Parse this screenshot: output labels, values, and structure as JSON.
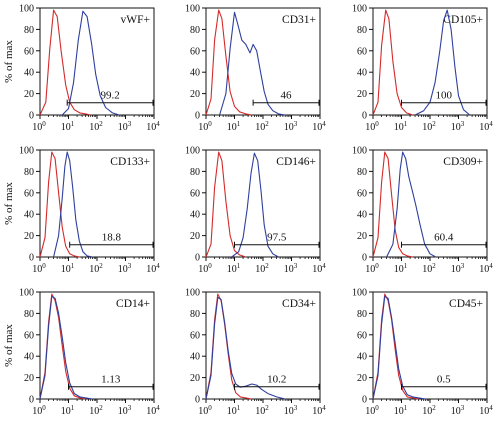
{
  "chart_data": [
    {
      "type": "area",
      "title": "vWF+",
      "ylabel": "% of max",
      "xscale": "log",
      "xlim": [
        1,
        10000
      ],
      "ylim": [
        0,
        100
      ],
      "yticks": [
        0,
        20,
        40,
        60,
        80,
        100
      ],
      "xtick_exponents": [
        0,
        1,
        2,
        3,
        4
      ],
      "series": [
        {
          "color": "#d42a2a",
          "x": [
            1,
            1.6,
            2.2,
            3,
            4,
            5.5,
            8,
            11,
            16,
            25,
            40,
            60
          ],
          "y": [
            0,
            12,
            62,
            98,
            92,
            60,
            28,
            12,
            5,
            2,
            1,
            0
          ]
        },
        {
          "color": "#2f3f9e",
          "x": [
            6,
            10,
            15,
            22,
            32,
            45,
            65,
            90,
            130,
            200,
            350,
            600
          ],
          "y": [
            0,
            6,
            30,
            70,
            97,
            92,
            66,
            38,
            18,
            7,
            2,
            0
          ]
        }
      ],
      "gate": {
        "from": 9,
        "to": 10000,
        "label": "99.2"
      }
    },
    {
      "type": "area",
      "title": "CD31+",
      "ylabel": "",
      "xscale": "log",
      "xlim": [
        1,
        10000
      ],
      "ylim": [
        0,
        100
      ],
      "yticks": [
        0,
        20,
        40,
        60,
        80,
        100
      ],
      "xtick_exponents": [
        0,
        1,
        2,
        3,
        4
      ],
      "series": [
        {
          "color": "#d42a2a",
          "x": [
            1,
            1.5,
            2,
            2.8,
            3.6,
            5,
            7,
            10,
            15,
            25,
            40
          ],
          "y": [
            0,
            15,
            70,
            98,
            90,
            55,
            22,
            8,
            3,
            1,
            0
          ]
        },
        {
          "color": "#2f3f9e",
          "x": [
            3,
            5,
            7,
            10,
            13,
            18,
            25,
            35,
            45,
            60,
            80,
            110,
            150,
            220,
            350,
            600
          ],
          "y": [
            0,
            20,
            62,
            96,
            85,
            70,
            66,
            58,
            66,
            60,
            42,
            22,
            10,
            4,
            1,
            0
          ]
        }
      ],
      "gate": {
        "from": 45,
        "to": 10000,
        "label": "46"
      }
    },
    {
      "type": "area",
      "title": "CD105+",
      "ylabel": "",
      "xscale": "log",
      "xlim": [
        1,
        10000
      ],
      "ylim": [
        0,
        100
      ],
      "yticks": [
        0,
        20,
        40,
        60,
        80,
        100
      ],
      "xtick_exponents": [
        0,
        1,
        2,
        3,
        4
      ],
      "series": [
        {
          "color": "#d42a2a",
          "x": [
            1,
            1.5,
            2,
            2.8,
            3.6,
            5,
            7,
            10,
            15,
            25
          ],
          "y": [
            0,
            12,
            65,
            98,
            90,
            50,
            20,
            7,
            2,
            0
          ]
        },
        {
          "color": "#2f3f9e",
          "x": [
            30,
            60,
            100,
            150,
            220,
            300,
            400,
            550,
            750,
            1000,
            1500,
            2500
          ],
          "y": [
            0,
            4,
            12,
            30,
            60,
            88,
            98,
            80,
            45,
            18,
            5,
            0
          ]
        }
      ],
      "gate": {
        "from": 10,
        "to": 10000,
        "label": "100"
      }
    },
    {
      "type": "area",
      "title": "CD133+",
      "ylabel": "% of max",
      "xscale": "log",
      "xlim": [
        1,
        10000
      ],
      "ylim": [
        0,
        100
      ],
      "yticks": [
        0,
        20,
        40,
        60,
        80,
        100
      ],
      "xtick_exponents": [
        0,
        1,
        2,
        3,
        4
      ],
      "series": [
        {
          "color": "#d42a2a",
          "x": [
            1,
            1.5,
            2,
            2.6,
            3.4,
            4.5,
            6,
            8,
            11,
            16,
            25
          ],
          "y": [
            0,
            18,
            70,
            98,
            92,
            60,
            28,
            10,
            3,
            1,
            0
          ]
        },
        {
          "color": "#2f3f9e",
          "x": [
            3,
            4.5,
            6,
            7.5,
            9,
            11,
            14,
            18,
            24,
            32,
            45,
            70
          ],
          "y": [
            0,
            20,
            55,
            85,
            98,
            90,
            65,
            35,
            15,
            5,
            1,
            0
          ]
        }
      ],
      "gate": {
        "from": 11,
        "to": 10000,
        "label": "18.8"
      }
    },
    {
      "type": "area",
      "title": "CD146+",
      "ylabel": "",
      "xscale": "log",
      "xlim": [
        1,
        10000
      ],
      "ylim": [
        0,
        100
      ],
      "yticks": [
        0,
        20,
        40,
        60,
        80,
        100
      ],
      "xtick_exponents": [
        0,
        1,
        2,
        3,
        4
      ],
      "series": [
        {
          "color": "#d42a2a",
          "x": [
            1,
            1.5,
            2,
            2.8,
            3.6,
            5,
            7,
            10,
            15,
            25
          ],
          "y": [
            0,
            12,
            65,
            98,
            90,
            52,
            20,
            6,
            2,
            0
          ]
        },
        {
          "color": "#2f3f9e",
          "x": [
            8,
            14,
            20,
            28,
            38,
            50,
            65,
            85,
            110,
            150,
            220,
            350
          ],
          "y": [
            0,
            5,
            18,
            45,
            78,
            97,
            90,
            62,
            30,
            10,
            3,
            0
          ]
        }
      ],
      "gate": {
        "from": 10,
        "to": 10000,
        "label": "97.5"
      }
    },
    {
      "type": "area",
      "title": "CD309+",
      "ylabel": "",
      "xscale": "log",
      "xlim": [
        1,
        10000
      ],
      "ylim": [
        0,
        100
      ],
      "yticks": [
        0,
        20,
        40,
        60,
        80,
        100
      ],
      "xtick_exponents": [
        0,
        1,
        2,
        3,
        4
      ],
      "series": [
        {
          "color": "#d42a2a",
          "x": [
            1,
            1.5,
            2,
            2.6,
            3.4,
            4.5,
            6,
            8,
            11,
            16,
            25
          ],
          "y": [
            0,
            18,
            70,
            98,
            92,
            58,
            25,
            9,
            3,
            1,
            0
          ]
        },
        {
          "color": "#2f3f9e",
          "x": [
            3,
            5,
            7,
            9,
            11,
            14,
            18,
            24,
            32,
            45,
            65,
            100,
            160
          ],
          "y": [
            0,
            12,
            45,
            82,
            98,
            92,
            75,
            62,
            48,
            30,
            12,
            3,
            0
          ]
        }
      ],
      "gate": {
        "from": 10,
        "to": 10000,
        "label": "60.4"
      }
    },
    {
      "type": "area",
      "title": "CD14+",
      "ylabel": "% of max",
      "xscale": "log",
      "xlim": [
        1,
        10000
      ],
      "ylim": [
        0,
        100
      ],
      "yticks": [
        0,
        20,
        40,
        60,
        80,
        100
      ],
      "xtick_exponents": [
        0,
        1,
        2,
        3,
        4
      ],
      "series": [
        {
          "color": "#d42a2a",
          "x": [
            1,
            1.5,
            2,
            2.6,
            3.4,
            4.5,
            6,
            8,
            11,
            16,
            25,
            40
          ],
          "y": [
            0,
            25,
            72,
            98,
            92,
            76,
            50,
            26,
            10,
            3,
            1,
            0
          ]
        },
        {
          "color": "#2f3f9e",
          "x": [
            1,
            1.5,
            2,
            2.6,
            3.4,
            4.5,
            6,
            8,
            11,
            16,
            25,
            40,
            70
          ],
          "y": [
            0,
            22,
            68,
            96,
            94,
            80,
            58,
            34,
            15,
            5,
            2,
            1,
            0
          ]
        }
      ],
      "gate": {
        "from": 10,
        "to": 10000,
        "label": "1.13"
      }
    },
    {
      "type": "area",
      "title": "CD34+",
      "ylabel": "",
      "xscale": "log",
      "xlim": [
        1,
        10000
      ],
      "ylim": [
        0,
        100
      ],
      "yticks": [
        0,
        20,
        40,
        60,
        80,
        100
      ],
      "xtick_exponents": [
        0,
        1,
        2,
        3,
        4
      ],
      "series": [
        {
          "color": "#d42a2a",
          "x": [
            1,
            1.5,
            2,
            2.6,
            3.4,
            4.5,
            6,
            8,
            11,
            16,
            25,
            40
          ],
          "y": [
            0,
            25,
            74,
            98,
            92,
            70,
            42,
            18,
            6,
            2,
            1,
            0
          ]
        },
        {
          "color": "#2f3f9e",
          "x": [
            1,
            1.5,
            2,
            2.6,
            3.4,
            4.5,
            6,
            8,
            11,
            16,
            25,
            40,
            60,
            90,
            150,
            300,
            600
          ],
          "y": [
            0,
            22,
            70,
            95,
            93,
            72,
            45,
            24,
            14,
            11,
            12,
            14,
            13,
            9,
            5,
            2,
            0
          ]
        }
      ],
      "gate": {
        "from": 10,
        "to": 10000,
        "label": "10.2"
      }
    },
    {
      "type": "area",
      "title": "CD45+",
      "ylabel": "",
      "xscale": "log",
      "xlim": [
        1,
        10000
      ],
      "ylim": [
        0,
        100
      ],
      "yticks": [
        0,
        20,
        40,
        60,
        80,
        100
      ],
      "xtick_exponents": [
        0,
        1,
        2,
        3,
        4
      ],
      "series": [
        {
          "color": "#d42a2a",
          "x": [
            1,
            1.5,
            2,
            2.6,
            3.4,
            4.5,
            6,
            8,
            11,
            16,
            25,
            40
          ],
          "y": [
            0,
            25,
            74,
            98,
            92,
            74,
            46,
            22,
            8,
            2,
            1,
            0
          ]
        },
        {
          "color": "#2f3f9e",
          "x": [
            1,
            1.5,
            2,
            2.6,
            3.4,
            4.5,
            6,
            8,
            11,
            16,
            25,
            40,
            70
          ],
          "y": [
            0,
            22,
            70,
            96,
            94,
            76,
            52,
            28,
            12,
            4,
            2,
            1,
            0
          ]
        }
      ],
      "gate": {
        "from": 10,
        "to": 10000,
        "label": "0.5"
      }
    }
  ]
}
